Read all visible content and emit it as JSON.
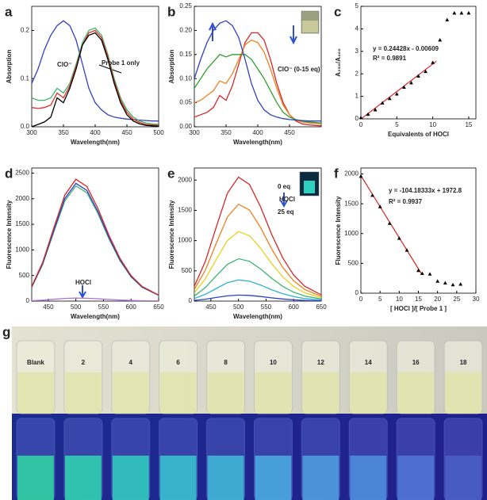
{
  "chart_data": [
    {
      "type": "line",
      "label": "a",
      "xlabel": "Wavelength(nm)",
      "ylabel": "Absorption",
      "xlim": [
        300,
        500
      ],
      "xticks": [
        300,
        350,
        400,
        450,
        500
      ],
      "ylim": [
        0,
        0.25
      ],
      "yticks": [
        {
          "value": 0,
          "label": "0.0"
        },
        0.1,
        0.2
      ],
      "x": [
        300,
        310,
        320,
        330,
        340,
        350,
        360,
        370,
        380,
        390,
        400,
        410,
        420,
        430,
        440,
        450,
        460,
        470,
        480,
        490,
        500
      ],
      "series": [
        {
          "color": "#3040c0",
          "values": [
            0.09,
            0.12,
            0.16,
            0.19,
            0.21,
            0.22,
            0.21,
            0.18,
            0.13,
            0.08,
            0.05,
            0.035,
            0.025,
            0.02,
            0.018,
            0.016,
            0.015,
            0.014,
            0.013,
            0.012,
            0.012
          ]
        },
        {
          "color": "#3cb371",
          "values": [
            0.06,
            0.055,
            0.055,
            0.06,
            0.08,
            0.07,
            0.09,
            0.13,
            0.175,
            0.2,
            0.205,
            0.19,
            0.15,
            0.1,
            0.06,
            0.035,
            0.02,
            0.012,
            0.008,
            0.006,
            0.005
          ]
        },
        {
          "color": "#e03020",
          "values": [
            0.04,
            0.038,
            0.04,
            0.045,
            0.07,
            0.06,
            0.085,
            0.125,
            0.17,
            0.195,
            0.2,
            0.185,
            0.145,
            0.095,
            0.055,
            0.03,
            0.016,
            0.009,
            0.005,
            0.004,
            0.003
          ]
        },
        {
          "color": "#000000",
          "values": [
            0,
            0.005,
            0.01,
            0.02,
            0.06,
            0.05,
            0.08,
            0.12,
            0.17,
            0.19,
            0.195,
            0.18,
            0.14,
            0.09,
            0.05,
            0.025,
            0.012,
            0.006,
            0.003,
            0.002,
            0.001
          ]
        }
      ],
      "annotations": [
        "ClO⁻",
        "Probe 1 only"
      ]
    },
    {
      "type": "line",
      "label": "b",
      "xlabel": "Wavelength(nm)",
      "ylabel": "Absorption",
      "xlim": [
        300,
        500
      ],
      "xticks": [
        300,
        350,
        400,
        450
      ],
      "ylim": [
        0,
        0.25
      ],
      "yticks": [
        {
          "value": 0,
          "label": "0.00"
        },
        {
          "value": 0.05,
          "label": "0.05"
        },
        {
          "value": 0.1,
          "label": "0.10"
        },
        {
          "value": 0.15,
          "label": "0.15"
        },
        {
          "value": 0.2,
          "label": "0.20"
        },
        {
          "value": 0.25,
          "label": "0.25"
        }
      ],
      "x": [
        300,
        310,
        320,
        330,
        340,
        350,
        360,
        370,
        380,
        390,
        400,
        410,
        420,
        430,
        440,
        450,
        460,
        470,
        480,
        490,
        500
      ],
      "series": [
        {
          "color": "#d62728",
          "values": [
            0.02,
            0.025,
            0.03,
            0.04,
            0.065,
            0.055,
            0.085,
            0.13,
            0.175,
            0.195,
            0.195,
            0.18,
            0.14,
            0.09,
            0.05,
            0.025,
            0.012,
            0.006,
            0.004,
            0.003,
            0.002
          ]
        },
        {
          "color": "#f08020",
          "values": [
            0.05,
            0.055,
            0.065,
            0.075,
            0.095,
            0.09,
            0.11,
            0.14,
            0.17,
            0.18,
            0.175,
            0.155,
            0.12,
            0.08,
            0.045,
            0.025,
            0.014,
            0.01,
            0.008,
            0.007,
            0.006
          ]
        },
        {
          "color": "#2ca02c",
          "values": [
            0.08,
            0.1,
            0.12,
            0.135,
            0.15,
            0.145,
            0.15,
            0.15,
            0.15,
            0.14,
            0.12,
            0.1,
            0.075,
            0.05,
            0.03,
            0.02,
            0.015,
            0.012,
            0.01,
            0.009,
            0.008
          ]
        },
        {
          "color": "#3040c0",
          "values": [
            0.1,
            0.14,
            0.175,
            0.2,
            0.215,
            0.22,
            0.21,
            0.185,
            0.14,
            0.09,
            0.055,
            0.035,
            0.025,
            0.02,
            0.017,
            0.015,
            0.014,
            0.013,
            0.012,
            0.012,
            0.012
          ]
        }
      ],
      "annotations": [
        "ClO⁻ (0-15 eq)"
      ]
    },
    {
      "type": "scatter",
      "label": "c",
      "xlabel": "Equivalents of HOCl",
      "ylabel": "A₃₅₀/A₄₀₀",
      "xlim": [
        0,
        16
      ],
      "xticks": [
        0,
        5,
        10,
        15
      ],
      "ylim": [
        0,
        5
      ],
      "yticks": [
        0,
        1,
        2,
        3,
        4,
        5
      ],
      "x": [
        0,
        1,
        2,
        3,
        4,
        5,
        6,
        7,
        8,
        9,
        10,
        11,
        12,
        13,
        14,
        15
      ],
      "values": [
        0.05,
        0.2,
        0.4,
        0.7,
        0.9,
        1.1,
        1.4,
        1.6,
        1.9,
        2.1,
        2.5,
        3.5,
        4.4,
        4.7,
        4.7,
        4.7
      ],
      "color": "#000000",
      "fit": {
        "color": "#d62728",
        "x": [
          0,
          10.5
        ],
        "values": [
          -0.006,
          2.559
        ]
      },
      "annotations": [
        "y = 0.24428x - 0.00609",
        "R² = 0.9891"
      ]
    },
    {
      "type": "line",
      "label": "d",
      "xlabel": "Wavelength(nm)",
      "ylabel": "Fluorescence Intensity",
      "xlim": [
        420,
        650
      ],
      "xticks": [
        450,
        500,
        550,
        600,
        650
      ],
      "ylim": [
        0,
        2600
      ],
      "yticks": [
        0,
        500,
        1000,
        1500,
        2000,
        2500
      ],
      "x": [
        420,
        440,
        460,
        480,
        500,
        520,
        540,
        560,
        580,
        600,
        620,
        650
      ],
      "series": [
        {
          "color": "#3cb371",
          "values": [
            270,
            720,
            1350,
            1958,
            2250,
            2115,
            1710,
            1215,
            788,
            473,
            270,
            113
          ]
        },
        {
          "color": "#3040c0",
          "values": [
            276,
            736,
            1380,
            2001,
            2300,
            2162,
            1748,
            1242,
            805,
            483,
            276,
            115
          ]
        },
        {
          "color": "#d62728",
          "values": [
            286,
            762,
            1428,
            2071,
            2380,
            2237,
            1809,
            1285,
            833,
            500,
            286,
            119
          ]
        },
        {
          "color": "#b070d0",
          "values": [
            7,
            19,
            36,
            52,
            60,
            56,
            46,
            32,
            21,
            13,
            7,
            3
          ]
        }
      ],
      "annotations": [
        "HOCl"
      ]
    },
    {
      "type": "line",
      "label": "e",
      "xlabel": "Wavelength(nm)",
      "ylabel": "Fluorescence Intensity",
      "xlim": [
        420,
        650
      ],
      "xticks": [
        450,
        500,
        550,
        600,
        650
      ],
      "ylim": [
        0,
        2200
      ],
      "yticks": [
        0,
        500,
        1000,
        1500,
        2000
      ],
      "x": [
        420,
        440,
        460,
        480,
        500,
        520,
        540,
        560,
        580,
        600,
        620,
        650
      ],
      "series": [
        {
          "color": "#d62728",
          "values": [
            246,
            656,
            1230,
            1784,
            2050,
            1927,
            1558,
            1107,
            718,
            431,
            246,
            103
          ]
        },
        {
          "color": "#f08020",
          "values": [
            192,
            512,
            960,
            1392,
            1600,
            1504,
            1216,
            864,
            560,
            336,
            192,
            80
          ]
        },
        {
          "color": "#e8d020",
          "values": [
            138,
            368,
            690,
            1001,
            1150,
            1081,
            874,
            621,
            403,
            242,
            138,
            58
          ]
        },
        {
          "color": "#3cb371",
          "values": [
            84,
            224,
            420,
            609,
            700,
            658,
            532,
            378,
            245,
            147,
            84,
            35
          ]
        },
        {
          "color": "#30b0d0",
          "values": [
            42,
            112,
            210,
            305,
            350,
            329,
            266,
            189,
            123,
            74,
            42,
            18
          ]
        },
        {
          "color": "#3040c0",
          "values": [
            12,
            32,
            60,
            87,
            100,
            94,
            76,
            54,
            35,
            21,
            12,
            5
          ]
        }
      ],
      "annotations": [
        "0 eq",
        "HOCl",
        "25 eq"
      ]
    },
    {
      "type": "scatter",
      "label": "f",
      "xlabel": "[ HOCl ]/[ Probe 1 ]",
      "ylabel": "Fluorescence Intensity",
      "xlim": [
        0,
        30
      ],
      "xticks": [
        0,
        5,
        10,
        15,
        20,
        25,
        30
      ],
      "ylim": [
        0,
        2100
      ],
      "yticks": [
        0,
        500,
        1000,
        1500,
        2000
      ],
      "x": [
        0,
        3,
        5,
        7.5,
        10,
        12,
        15,
        16,
        18,
        20,
        22,
        24,
        26
      ],
      "values": [
        1960,
        1640,
        1450,
        1170,
        920,
        720,
        380,
        330,
        320,
        200,
        170,
        140,
        150
      ],
      "color": "#000000",
      "fit": {
        "color": "#d62728",
        "x": [
          0,
          16
        ],
        "values": [
          1972.8,
          306
        ]
      },
      "annotations": [
        "y = -104.18333x + 1972.8",
        "R² = 0.9937"
      ]
    }
  ],
  "photo": {
    "label": "g",
    "vial_labels": [
      "Blank",
      "2",
      "4",
      "6",
      "8",
      "10",
      "12",
      "14",
      "16",
      "18"
    ]
  }
}
